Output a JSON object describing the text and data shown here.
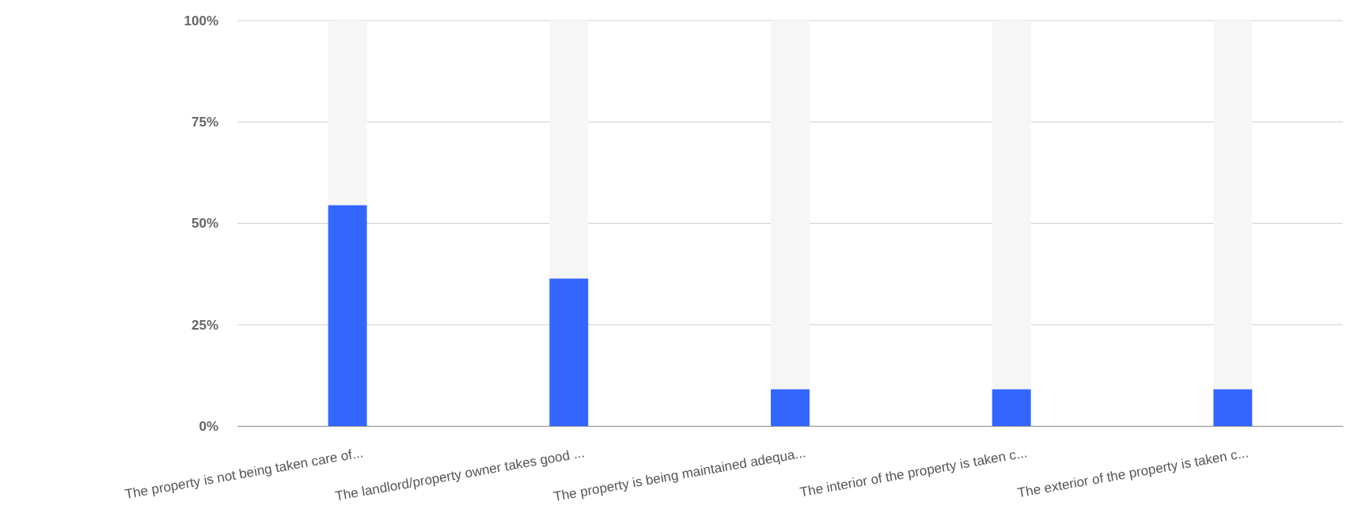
{
  "chart_data": {
    "type": "bar",
    "stacked": true,
    "categories": [
      "The property is not being taken care of...",
      "The landlord/property owner takes good ...",
      "The property is being maintained adequa...",
      "The interior of the property is taken c...",
      "The exterior of the property is taken c..."
    ],
    "series": [
      {
        "color": "#3366ff",
        "values": [
          54.5,
          36.4,
          9.1,
          9.1,
          9.1
        ]
      },
      {
        "color": "#f6f6f6",
        "values": [
          45.5,
          63.6,
          90.9,
          90.9,
          90.9
        ]
      }
    ],
    "ylim": [
      0,
      100
    ],
    "yticks": [
      {
        "value": 0,
        "label": "0%"
      },
      {
        "value": 25,
        "label": "25%"
      },
      {
        "value": 50,
        "label": "50%"
      },
      {
        "value": 75,
        "label": "75%"
      },
      {
        "value": 100,
        "label": "100%"
      }
    ],
    "grid": "y"
  }
}
